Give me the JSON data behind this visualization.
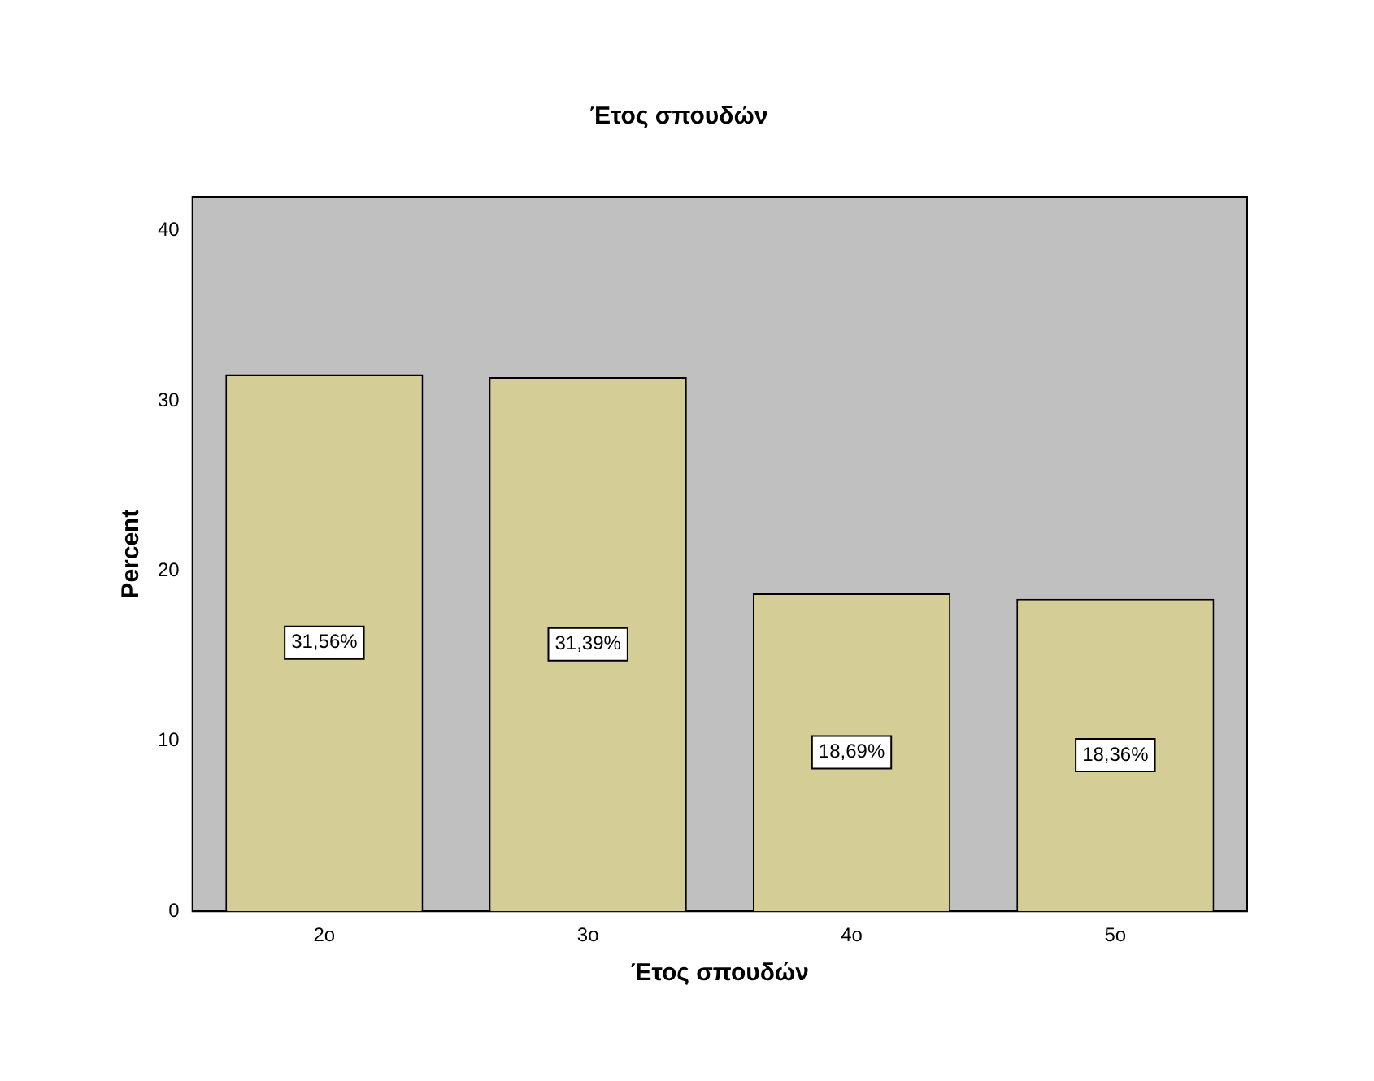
{
  "chart_data": {
    "type": "bar",
    "title": "Έτος σπουδών",
    "xlabel": "Έτος σπουδών",
    "ylabel": "Percent",
    "categories": [
      "2ο",
      "3ο",
      "4ο",
      "5ο"
    ],
    "values": [
      31.56,
      31.39,
      18.69,
      18.36
    ],
    "value_labels": [
      "31,56%",
      "31,39%",
      "18,69%",
      "18,36%"
    ],
    "color": "#d4cd96",
    "ylim": [
      0,
      42
    ],
    "yticks": [
      0,
      10,
      20,
      30,
      40
    ],
    "grid": false,
    "legend": false
  }
}
